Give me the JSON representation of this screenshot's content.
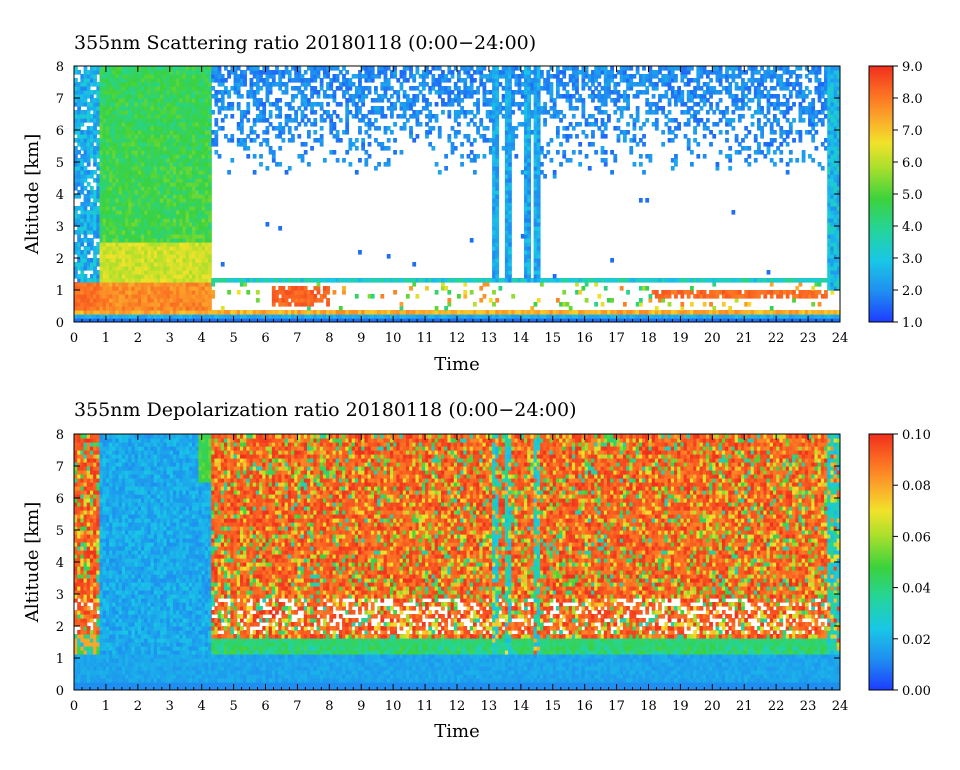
{
  "chart_data": [
    {
      "type": "heatmap",
      "title": "355nm Scattering ratio  20180118 (0:00−24:00)",
      "xlabel": "Time",
      "ylabel": "Altitude [km]",
      "xlim": [
        0,
        24
      ],
      "ylim": [
        0,
        8
      ],
      "x_ticks": [
        "0",
        "1",
        "2",
        "3",
        "4",
        "5",
        "6",
        "7",
        "8",
        "9",
        "10",
        "11",
        "12",
        "13",
        "14",
        "15",
        "16",
        "17",
        "18",
        "19",
        "20",
        "21",
        "22",
        "23",
        "24"
      ],
      "y_ticks": [
        "0",
        "1",
        "2",
        "3",
        "4",
        "5",
        "6",
        "7",
        "8"
      ],
      "colorbar": {
        "range": [
          1.0,
          9.0
        ],
        "ticks": [
          "1.0",
          "2.0",
          "3.0",
          "4.0",
          "5.0",
          "6.0",
          "7.0",
          "8.0",
          "9.0"
        ]
      },
      "features": [
        {
          "kind": "cloud_column",
          "time_range": [
            0.8,
            4.35
          ],
          "alt_range": [
            0.4,
            8.0
          ],
          "value": 5.0
        },
        {
          "kind": "cloud_base_layer",
          "time_range": [
            0.0,
            4.35
          ],
          "alt_range": [
            0.4,
            1.2
          ],
          "value": 8.0
        },
        {
          "kind": "boundary_layer_top",
          "alt": 1.3
        },
        {
          "kind": "aerosol_patch",
          "time_range": [
            6.2,
            8.0
          ],
          "alt_range": [
            0.5,
            1.1
          ],
          "value": 8.2
        },
        {
          "kind": "aerosol_patch",
          "time_range": [
            18.1,
            23.6
          ],
          "alt_range": [
            0.7,
            1.0
          ],
          "value": 8.0
        },
        {
          "kind": "vertical_streak",
          "time": [
            13.2,
            13.6,
            14.2,
            14.5
          ],
          "alt_range": [
            1.3,
            8.0
          ],
          "value": 2.2
        },
        {
          "kind": "vertical_streak",
          "time": [
            23.6,
            24.0
          ],
          "alt_range": [
            1.0,
            8.0
          ],
          "value": 2.5
        },
        {
          "kind": "sparse_noise",
          "alt_range": [
            4.5,
            8.0
          ],
          "value": 1.8
        }
      ]
    },
    {
      "type": "heatmap",
      "title": "355nm Depolarization ratio  20180118 (0:00−24:00)",
      "xlabel": "Time",
      "ylabel": "Altitude [km]",
      "xlim": [
        0,
        24
      ],
      "ylim": [
        0,
        8
      ],
      "x_ticks": [
        "0",
        "1",
        "2",
        "3",
        "4",
        "5",
        "6",
        "7",
        "8",
        "9",
        "10",
        "11",
        "12",
        "13",
        "14",
        "15",
        "16",
        "17",
        "18",
        "19",
        "20",
        "21",
        "22",
        "23",
        "24"
      ],
      "y_ticks": [
        "0",
        "1",
        "2",
        "3",
        "4",
        "5",
        "6",
        "7",
        "8"
      ],
      "colorbar": {
        "range": [
          0.0,
          0.1
        ],
        "ticks": [
          "0.00",
          "0.02",
          "0.04",
          "0.06",
          "0.08",
          "0.10"
        ]
      },
      "features": [
        {
          "kind": "low_depol_column",
          "time_range": [
            0.8,
            4.35
          ],
          "alt_range": [
            0.0,
            8.0
          ],
          "value": 0.018
        },
        {
          "kind": "low_depol_layer",
          "alt_range": [
            0.0,
            1.1
          ],
          "value": 0.015
        },
        {
          "kind": "transition_band",
          "alt_range": [
            1.1,
            1.6
          ],
          "value": 0.04
        },
        {
          "kind": "high_noise",
          "alt_range": [
            1.6,
            8.0
          ],
          "value": 0.095
        },
        {
          "kind": "vertical_streak",
          "time": [
            13.2,
            13.6,
            14.5,
            23.7
          ],
          "alt_range": [
            1.0,
            8.0
          ],
          "value": 0.025
        }
      ]
    }
  ]
}
